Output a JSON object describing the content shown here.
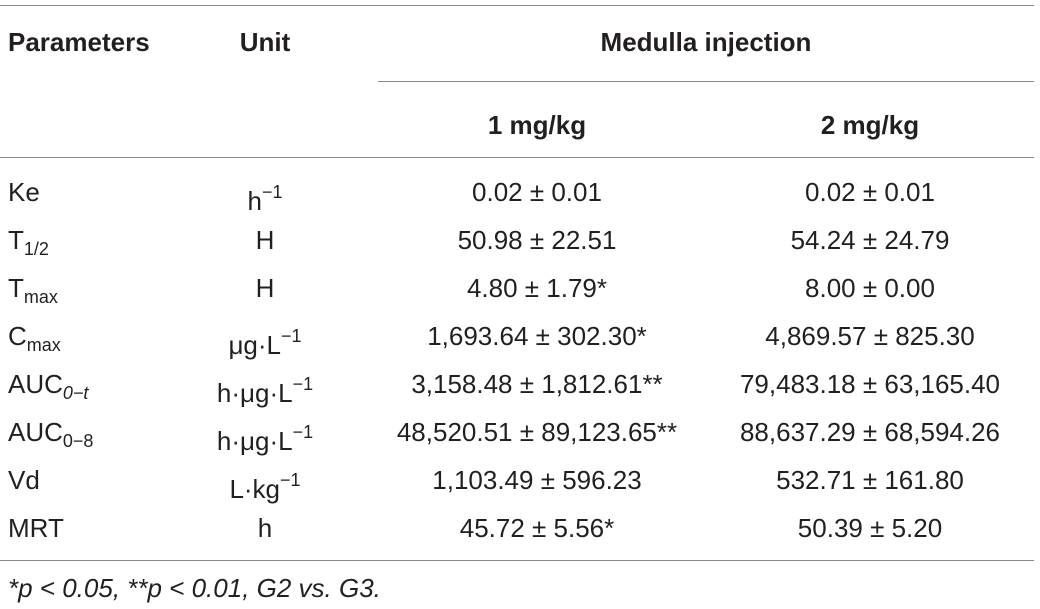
{
  "header": {
    "parameters": "Parameters",
    "unit": "Unit",
    "group": "Medulla injection",
    "dose1": "1 mg/kg",
    "dose2": "2 mg/kg"
  },
  "rows": [
    {
      "param": "Ke",
      "param_sub": "",
      "unit": "h",
      "unit_sup": "−1",
      "v1": "0.02 ± 0.01",
      "v2": "0.02 ± 0.01"
    },
    {
      "param": "T",
      "param_sub": "1/2",
      "unit": "H",
      "unit_sup": "",
      "v1": "50.98 ± 22.51",
      "v2": "54.24 ± 24.79"
    },
    {
      "param": "T",
      "param_sub": "max",
      "unit": "H",
      "unit_sup": "",
      "v1": "4.80 ± 1.79*",
      "v2": "8.00 ± 0.00"
    },
    {
      "param": "C",
      "param_sub": "max",
      "unit": "μg·L",
      "unit_sup": "−1",
      "v1": "1,693.64 ± 302.30*",
      "v2": "4,869.57 ± 825.30"
    },
    {
      "param": "AUC",
      "param_sub": "0−t",
      "unit": "h·μg·L",
      "unit_sup": "−1",
      "v1": "3,158.48 ± 1,812.61**",
      "v2": "79,483.18 ± 63,165.40"
    },
    {
      "param": "AUC",
      "param_sub": "0−8",
      "unit": "h·μg·L",
      "unit_sup": "−1",
      "v1": "48,520.51 ± 89,123.65**",
      "v2": "88,637.29 ± 68,594.26"
    },
    {
      "param": "Vd",
      "param_sub": "",
      "unit": "L·kg",
      "unit_sup": "−1",
      "v1": "1,103.49 ± 596.23",
      "v2": "532.71 ± 161.80"
    },
    {
      "param": "MRT",
      "param_sub": "",
      "unit": "h",
      "unit_sup": "",
      "v1": "45.72 ± 5.56*",
      "v2": "50.39 ± 5.20"
    }
  ],
  "footnote": "*p < 0.05, **p < 0.01, G2 vs. G3."
}
